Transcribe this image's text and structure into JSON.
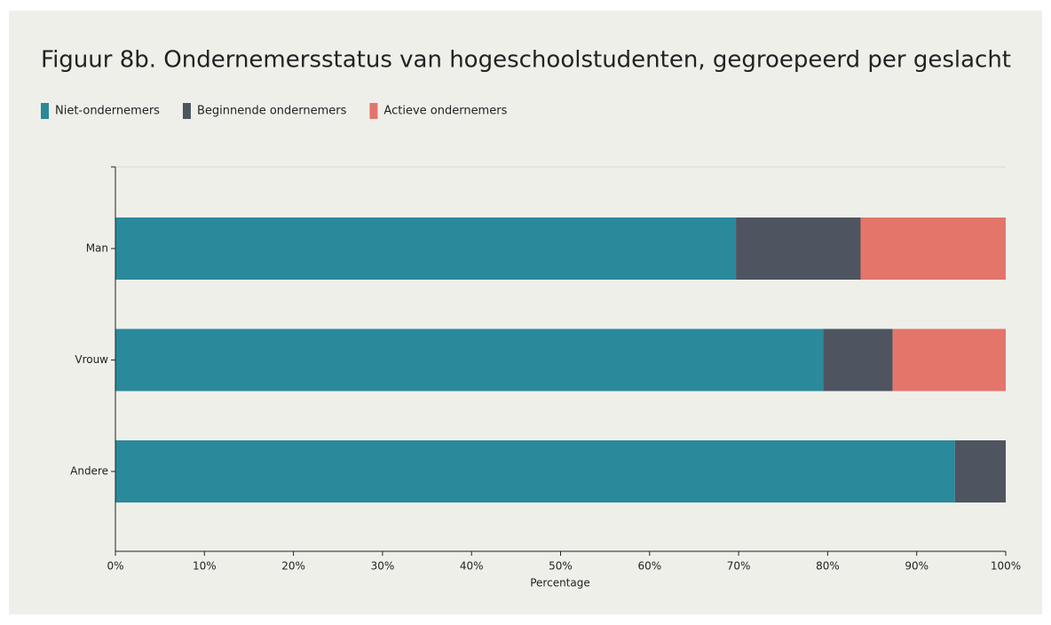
{
  "chart_data": {
    "type": "stacked-barh",
    "title": "Figuur 8b. Ondernemersstatus van hogeschoolstudenten, gegroepeerd per geslacht",
    "categories": [
      "Man",
      "Vrouw",
      "Andere"
    ],
    "series": [
      {
        "name": "Niet-ondernemers",
        "color": "#2a899b",
        "values": [
          69.7,
          79.5,
          94.3
        ]
      },
      {
        "name": "Beginnende ondernemers",
        "color": "#4e5561",
        "values": [
          14.0,
          7.8,
          5.7
        ]
      },
      {
        "name": "Actieve ondernemers",
        "color": "#e4756a",
        "values": [
          16.3,
          12.7,
          0
        ]
      }
    ],
    "xlabel": "Percentage",
    "xlim": [
      0,
      100
    ],
    "xticks": [
      {
        "value": 0,
        "label": "0%"
      },
      {
        "value": 10,
        "label": "10%"
      },
      {
        "value": 20,
        "label": "20%"
      },
      {
        "value": 30,
        "label": "30%"
      },
      {
        "value": 40,
        "label": "40%"
      },
      {
        "value": 50,
        "label": "50%"
      },
      {
        "value": 60,
        "label": "60%"
      },
      {
        "value": 70,
        "label": "70%"
      },
      {
        "value": 80,
        "label": "80%"
      },
      {
        "value": 90,
        "label": "90%"
      },
      {
        "value": 100,
        "label": "100%"
      }
    ],
    "legend": "top-left"
  }
}
